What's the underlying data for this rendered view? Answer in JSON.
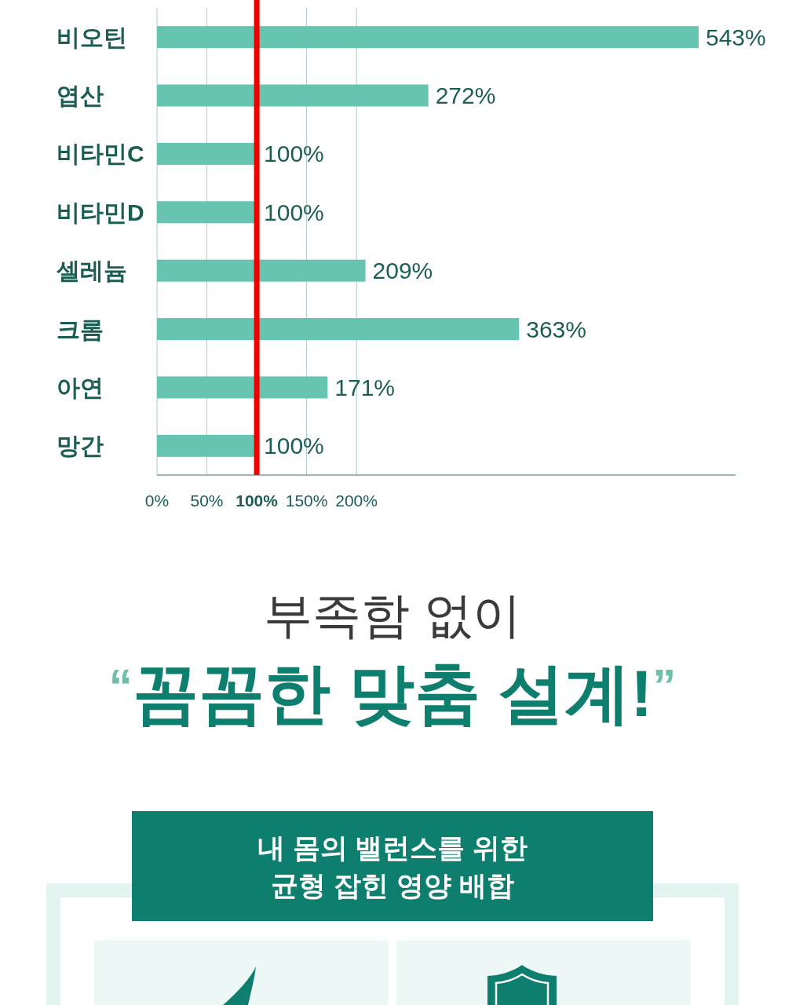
{
  "chart_data": {
    "type": "bar",
    "orientation": "horizontal",
    "categories": [
      "비오틴",
      "엽산",
      "비타민C",
      "비타민D",
      "셀레늄",
      "크롬",
      "아연",
      "망간"
    ],
    "values": [
      543,
      272,
      100,
      100,
      209,
      363,
      171,
      100
    ],
    "value_labels": [
      "543%",
      "272%",
      "100%",
      "100%",
      "209%",
      "363%",
      "171%",
      "100%"
    ],
    "color": "#66c4b0",
    "xlim": [
      0,
      580
    ],
    "xticks": [
      {
        "value": 0,
        "label": "0%"
      },
      {
        "value": 50,
        "label": "50%"
      },
      {
        "value": 100,
        "label": "100%"
      },
      {
        "value": 150,
        "label": "150%"
      },
      {
        "value": 200,
        "label": "200%"
      }
    ],
    "grid": "x",
    "ref_lines": [
      {
        "axis": "x",
        "value": 100,
        "color": "#ee0000"
      }
    ],
    "annotations": [
      "부족함 없이",
      "$^{“}$꼼꼼한 맞춤 설계!$^{”}$",
      "내 몸의 밸런스를 위한\n균형 잡힌 영양 배합"
    ]
  }
}
